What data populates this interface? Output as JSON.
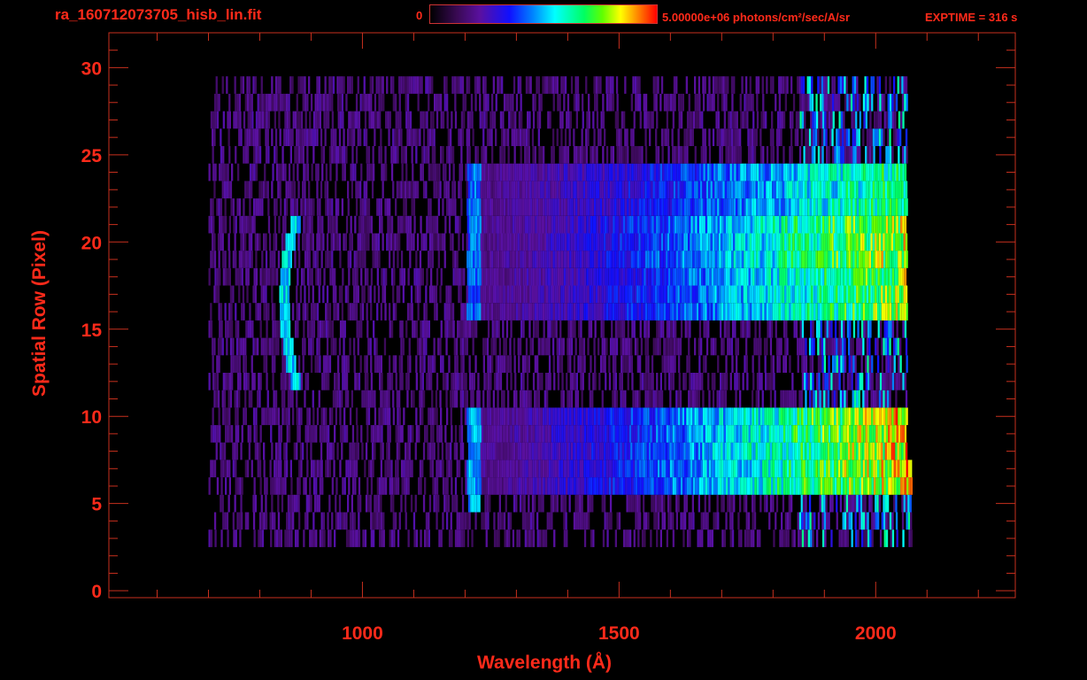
{
  "header": {
    "title": "ra_160712073705_hisb_lin.fit",
    "colorbar_min": "0",
    "colorbar_max": "5.00000e+06 photons/cm²/sec/A/sr",
    "exptime": "EXPTIME = 316 s"
  },
  "colors": {
    "text": "#ff2a1a",
    "axis": "#c8301e",
    "background": "#000000"
  },
  "chart_data": {
    "type": "heatmap",
    "title": "ra_160712073705_hisb_lin.fit",
    "xlabel": "Wavelength (Å)",
    "ylabel": "Spatial Row (Pixel)",
    "xlim": [
      506,
      2272
    ],
    "ylim": [
      -0.4,
      32
    ],
    "xticks": [
      1000,
      1500,
      2000
    ],
    "xtick_labels": [
      "1000",
      "1500",
      "2000"
    ],
    "yticks": [
      0,
      5,
      10,
      15,
      20,
      25,
      30
    ],
    "ytick_labels": [
      "0",
      "5",
      "10",
      "15",
      "20",
      "25",
      "30"
    ],
    "x_minor_step": 100,
    "y_minor_step": 1,
    "colorscale": {
      "min": 0,
      "max": 5000000,
      "units": "photons/cm2/sec/A/sr",
      "map": "rainbow"
    },
    "spectral_coverage": [
      700,
      2060
    ],
    "continuum_bands": [
      {
        "rows": [
          6,
          10
        ],
        "level": 0.7
      },
      {
        "rows": [
          16,
          18
        ],
        "level": 0.6
      },
      {
        "rows": [
          19,
          21
        ],
        "level": 0.65
      },
      {
        "rows": [
          22,
          24
        ],
        "level": 0.5
      }
    ],
    "emission_lines": [
      {
        "wavelength": 1216,
        "rows": [
          5,
          10
        ],
        "level": 0.5
      },
      {
        "wavelength": 1216,
        "rows": [
          16,
          24
        ],
        "level": 0.45
      },
      {
        "wavelength": 870,
        "rows": [
          12,
          21
        ],
        "level": 0.55,
        "shape": "arc"
      }
    ]
  }
}
